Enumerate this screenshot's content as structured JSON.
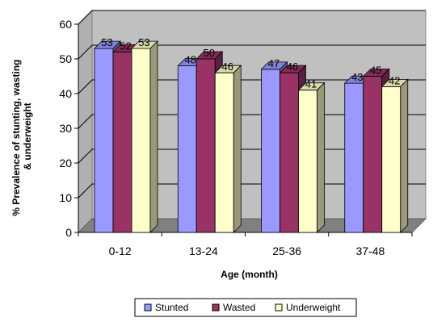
{
  "chart_data": {
    "type": "bar",
    "title": "",
    "xlabel": "Age (month)",
    "ylabel_lines": [
      "% Prevalence of stunting, wasting",
      "& underweight"
    ],
    "categories": [
      "0-12",
      "13-24",
      "25-36",
      "37-48"
    ],
    "series": [
      {
        "name": "Stunted",
        "values": [
          53,
          48,
          47,
          43
        ],
        "color": "#9999ff"
      },
      {
        "name": "Wasted",
        "values": [
          52,
          50,
          46,
          45
        ],
        "color": "#993366"
      },
      {
        "name": "Underweight",
        "values": [
          53,
          46,
          41,
          42
        ],
        "color": "#ffffcc"
      }
    ],
    "ylim": [
      0,
      60
    ],
    "yticks": [
      0,
      10,
      20,
      30,
      40,
      50,
      60
    ],
    "grid": true,
    "three_d": true,
    "legend_position": "bottom"
  }
}
